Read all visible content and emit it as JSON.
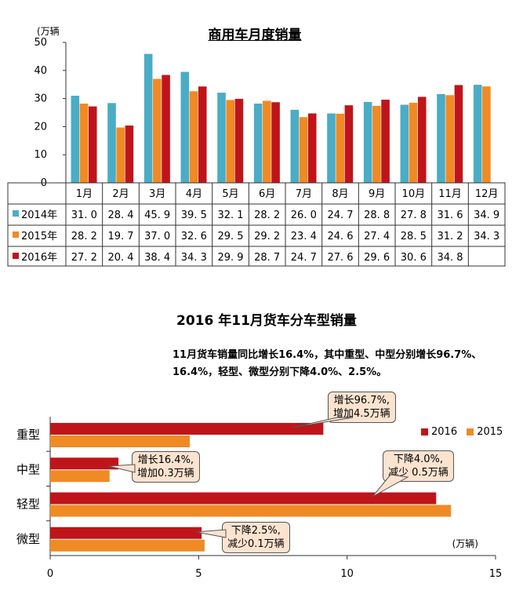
{
  "chart_data": [
    {
      "type": "bar",
      "title": "商用车月度销量",
      "ylabel": "(万辆",
      "ylim": [
        0,
        50
      ],
      "yticks": [
        "0",
        "10",
        "20",
        "30",
        "40",
        "50"
      ],
      "categories": [
        "1月",
        "2月",
        "3月",
        "4月",
        "5月",
        "6月",
        "7月",
        "8月",
        "9月",
        "10月",
        "11月",
        "12月"
      ],
      "series": [
        {
          "name": "2014年",
          "color": "#4bacc6",
          "values": [
            31.0,
            28.4,
            45.9,
            39.5,
            32.1,
            28.2,
            26.0,
            24.7,
            28.8,
            27.8,
            31.6,
            34.9
          ],
          "labels": [
            "31. 0",
            "28. 4",
            "45. 9",
            "39. 5",
            "32. 1",
            "28. 2",
            "26. 0",
            "24. 7",
            "28. 8",
            "27. 8",
            "31. 6",
            "34. 9"
          ]
        },
        {
          "name": "2015年",
          "color": "#f08a24",
          "values": [
            28.2,
            19.7,
            37.0,
            32.6,
            29.5,
            29.2,
            23.4,
            24.6,
            27.4,
            28.5,
            31.2,
            34.3
          ],
          "labels": [
            "28. 2",
            "19. 7",
            "37. 0",
            "32. 6",
            "29. 5",
            "29. 2",
            "23. 4",
            "24. 6",
            "27. 4",
            "28. 5",
            "31. 2",
            "34. 3"
          ]
        },
        {
          "name": "2016年",
          "color": "#c0141b",
          "values": [
            27.2,
            20.4,
            38.4,
            34.3,
            29.9,
            28.7,
            24.7,
            27.6,
            29.6,
            30.6,
            34.8,
            null
          ],
          "labels": [
            "27. 2",
            "20. 4",
            "38. 4",
            "34. 3",
            "29. 9",
            "28. 7",
            "24. 7",
            "27. 6",
            "29. 6",
            "30. 6",
            "34. 8",
            ""
          ]
        }
      ]
    },
    {
      "type": "bar",
      "orientation": "horizontal",
      "title": "2016 年11月货车分车型销量",
      "unit_label": "(万辆)",
      "xlim": [
        0,
        15
      ],
      "xticks": [
        "0",
        "5",
        "10",
        "15"
      ],
      "categories": [
        "重型",
        "中型",
        "轻型",
        "微型"
      ],
      "series": [
        {
          "name": "2016",
          "color": "#c0141b",
          "values": [
            9.2,
            2.3,
            13.0,
            5.1
          ]
        },
        {
          "name": "2015",
          "color": "#f08a24",
          "values": [
            4.7,
            2.0,
            13.5,
            5.2
          ]
        }
      ],
      "legend_position": "right",
      "summary": "11月货车销量同比增长16.4%，其中重型、中型分别增长96.7%、 16.4%，轻型、微型分别下降4.0%、2.5%。",
      "annotations": [
        {
          "line1": "增长96.7%,",
          "line2": "增加4.5万辆"
        },
        {
          "line1": "增长16.4%,",
          "line2": "增加0.3万辆"
        },
        {
          "line1": "下降4.0%,",
          "line2": "减少 0.5万辆"
        },
        {
          "line1": "下降2.5%,",
          "line2": "减少0.1万辆"
        }
      ]
    }
  ]
}
